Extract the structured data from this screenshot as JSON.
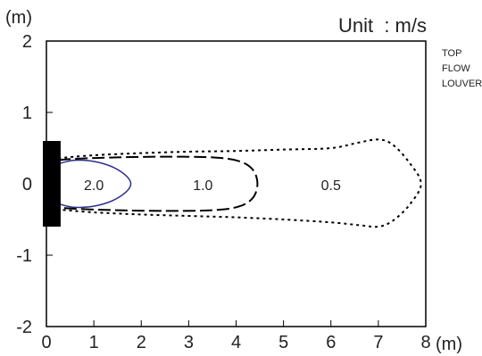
{
  "chart_data": {
    "type": "contour",
    "unit_label": "Unit  : m/s",
    "y_unit": "(m)",
    "x_unit": "(m)",
    "xlim": [
      0,
      8
    ],
    "ylim": [
      -2,
      2
    ],
    "x_ticks": [
      "0",
      "1",
      "2",
      "3",
      "4",
      "5",
      "6",
      "7",
      "8"
    ],
    "y_ticks": [
      "2",
      "1",
      "0",
      "-1",
      "-2"
    ],
    "side_labels": [
      "TOP",
      "FLOW",
      "LOUVER"
    ],
    "source": {
      "x": [
        0,
        0.3
      ],
      "y": [
        -0.6,
        0.6
      ]
    },
    "contours": [
      {
        "label": "2.0",
        "label_at": [
          1.0,
          -0.05
        ],
        "style": "solid",
        "color": "#2b2f8f",
        "points": [
          [
            0.25,
            0.28
          ],
          [
            0.6,
            0.33
          ],
          [
            1.1,
            0.3
          ],
          [
            1.55,
            0.18
          ],
          [
            1.78,
            0.0
          ],
          [
            1.55,
            -0.18
          ],
          [
            1.1,
            -0.3
          ],
          [
            0.6,
            -0.33
          ],
          [
            0.25,
            -0.28
          ]
        ]
      },
      {
        "label": "1.0",
        "label_at": [
          3.3,
          -0.05
        ],
        "style": "dashed",
        "color": "#000000",
        "points": [
          [
            0.25,
            0.33
          ],
          [
            0.6,
            0.35
          ],
          [
            1.5,
            0.37
          ],
          [
            2.5,
            0.38
          ],
          [
            3.5,
            0.37
          ],
          [
            4.05,
            0.32
          ],
          [
            4.35,
            0.2
          ],
          [
            4.45,
            0.0
          ],
          [
            4.35,
            -0.2
          ],
          [
            4.05,
            -0.32
          ],
          [
            3.5,
            -0.37
          ],
          [
            2.5,
            -0.38
          ],
          [
            1.5,
            -0.37
          ],
          [
            0.6,
            -0.35
          ],
          [
            0.25,
            -0.33
          ]
        ]
      },
      {
        "label": "0.5",
        "label_at": [
          6.0,
          -0.05
        ],
        "style": "dotted",
        "color": "#000000",
        "points": [
          [
            0.25,
            0.36
          ],
          [
            1.0,
            0.4
          ],
          [
            2.0,
            0.43
          ],
          [
            3.0,
            0.45
          ],
          [
            4.0,
            0.46
          ],
          [
            5.0,
            0.48
          ],
          [
            6.0,
            0.5
          ],
          [
            6.6,
            0.58
          ],
          [
            7.0,
            0.62
          ],
          [
            7.3,
            0.55
          ],
          [
            7.65,
            0.3
          ],
          [
            7.9,
            0.0
          ],
          [
            7.65,
            -0.3
          ],
          [
            7.3,
            -0.52
          ],
          [
            7.0,
            -0.6
          ],
          [
            6.6,
            -0.58
          ],
          [
            6.0,
            -0.54
          ],
          [
            5.0,
            -0.5
          ],
          [
            4.0,
            -0.47
          ],
          [
            3.0,
            -0.45
          ],
          [
            2.0,
            -0.43
          ],
          [
            1.0,
            -0.4
          ],
          [
            0.25,
            -0.36
          ]
        ]
      }
    ]
  }
}
